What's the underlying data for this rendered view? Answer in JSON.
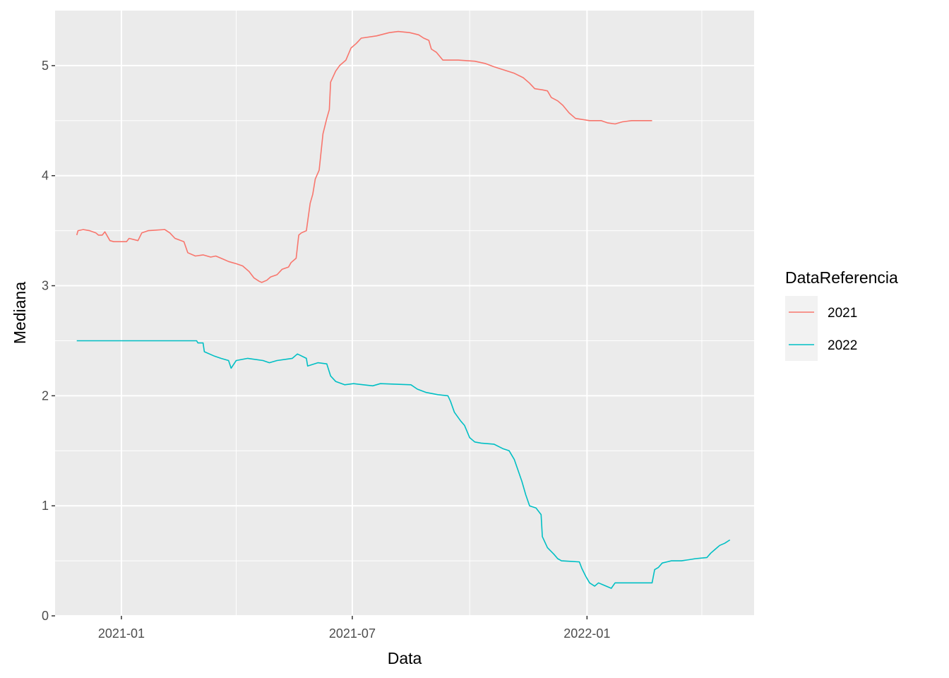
{
  "chart_data": {
    "type": "line",
    "xlabel": "Data",
    "ylabel": "Mediana",
    "x_type": "date",
    "xlim": [
      "2020-11-10",
      "2022-05-12"
    ],
    "ylim": [
      0,
      5.5
    ],
    "x_ticks": [
      {
        "date": "2021-01-01",
        "label": "2021-01"
      },
      {
        "date": "2021-07-01",
        "label": "2021-07"
      },
      {
        "date": "2022-01-01",
        "label": "2022-01"
      }
    ],
    "x_minor_ticks": [
      "2020-10-01",
      "2021-04-01",
      "2021-10-01",
      "2022-04-01"
    ],
    "y_ticks": [
      0,
      1,
      2,
      3,
      4,
      5
    ],
    "y_tick_labels": [
      "0",
      "1",
      "2",
      "3",
      "4",
      "5"
    ],
    "y_minor_ticks": [
      0.5,
      1.5,
      2.5,
      3.5,
      4.5
    ],
    "grid": true,
    "panel_background": "#ebebeb",
    "legend": {
      "title": "DataReferencia",
      "placement": "right"
    },
    "series": [
      {
        "name": "2021",
        "color": "#F8766D",
        "points": [
          [
            "2020-11-27",
            3.46
          ],
          [
            "2020-11-28",
            3.5
          ],
          [
            "2020-12-02",
            3.51
          ],
          [
            "2020-12-07",
            3.5
          ],
          [
            "2020-12-12",
            3.48
          ],
          [
            "2020-12-14",
            3.46
          ],
          [
            "2020-12-17",
            3.46
          ],
          [
            "2020-12-19",
            3.49
          ],
          [
            "2020-12-23",
            3.41
          ],
          [
            "2020-12-26",
            3.4
          ],
          [
            "2021-01-05",
            3.4
          ],
          [
            "2021-01-07",
            3.43
          ],
          [
            "2021-01-14",
            3.41
          ],
          [
            "2021-01-17",
            3.48
          ],
          [
            "2021-01-22",
            3.5
          ],
          [
            "2021-02-04",
            3.51
          ],
          [
            "2021-02-08",
            3.48
          ],
          [
            "2021-02-12",
            3.43
          ],
          [
            "2021-02-19",
            3.4
          ],
          [
            "2021-02-22",
            3.3
          ],
          [
            "2021-02-28",
            3.27
          ],
          [
            "2021-03-06",
            3.28
          ],
          [
            "2021-03-12",
            3.26
          ],
          [
            "2021-03-16",
            3.27
          ],
          [
            "2021-03-22",
            3.24
          ],
          [
            "2021-03-26",
            3.22
          ],
          [
            "2021-04-01",
            3.2
          ],
          [
            "2021-04-06",
            3.18
          ],
          [
            "2021-04-11",
            3.13
          ],
          [
            "2021-04-15",
            3.07
          ],
          [
            "2021-04-19",
            3.04
          ],
          [
            "2021-04-21",
            3.03
          ],
          [
            "2021-04-25",
            3.05
          ],
          [
            "2021-04-28",
            3.08
          ],
          [
            "2021-05-03",
            3.1
          ],
          [
            "2021-05-07",
            3.15
          ],
          [
            "2021-05-12",
            3.17
          ],
          [
            "2021-05-14",
            3.21
          ],
          [
            "2021-05-18",
            3.25
          ],
          [
            "2021-05-20",
            3.46
          ],
          [
            "2021-05-22",
            3.48
          ],
          [
            "2021-05-26",
            3.5
          ],
          [
            "2021-05-29",
            3.75
          ],
          [
            "2021-05-31",
            3.83
          ],
          [
            "2021-06-02",
            3.97
          ],
          [
            "2021-06-05",
            4.05
          ],
          [
            "2021-06-08",
            4.38
          ],
          [
            "2021-06-11",
            4.52
          ],
          [
            "2021-06-13",
            4.6
          ],
          [
            "2021-06-14",
            4.85
          ],
          [
            "2021-06-18",
            4.95
          ],
          [
            "2021-06-21",
            5.0
          ],
          [
            "2021-06-26",
            5.05
          ],
          [
            "2021-06-30",
            5.16
          ],
          [
            "2021-07-04",
            5.2
          ],
          [
            "2021-07-08",
            5.25
          ],
          [
            "2021-07-20",
            5.27
          ],
          [
            "2021-07-30",
            5.3
          ],
          [
            "2021-08-06",
            5.31
          ],
          [
            "2021-08-15",
            5.3
          ],
          [
            "2021-08-22",
            5.28
          ],
          [
            "2021-08-26",
            5.25
          ],
          [
            "2021-08-30",
            5.23
          ],
          [
            "2021-09-01",
            5.15
          ],
          [
            "2021-09-05",
            5.12
          ],
          [
            "2021-09-10",
            5.05
          ],
          [
            "2021-09-22",
            5.05
          ],
          [
            "2021-10-05",
            5.04
          ],
          [
            "2021-10-13",
            5.02
          ],
          [
            "2021-10-20",
            4.99
          ],
          [
            "2021-10-28",
            4.96
          ],
          [
            "2021-11-05",
            4.93
          ],
          [
            "2021-11-12",
            4.89
          ],
          [
            "2021-11-17",
            4.84
          ],
          [
            "2021-11-21",
            4.79
          ],
          [
            "2021-11-27",
            4.78
          ],
          [
            "2021-12-01",
            4.77
          ],
          [
            "2021-12-04",
            4.71
          ],
          [
            "2021-12-09",
            4.68
          ],
          [
            "2021-12-13",
            4.64
          ],
          [
            "2021-12-18",
            4.57
          ],
          [
            "2021-12-23",
            4.52
          ],
          [
            "2022-01-03",
            4.5
          ],
          [
            "2022-01-12",
            4.5
          ],
          [
            "2022-01-17",
            4.48
          ],
          [
            "2022-01-23",
            4.47
          ],
          [
            "2022-01-29",
            4.49
          ],
          [
            "2022-02-05",
            4.5
          ],
          [
            "2022-02-21",
            4.5
          ]
        ]
      },
      {
        "name": "2022",
        "color": "#00BFC4",
        "points": [
          [
            "2020-11-27",
            2.5
          ],
          [
            "2021-03-01",
            2.5
          ],
          [
            "2021-03-02",
            2.48
          ],
          [
            "2021-03-06",
            2.48
          ],
          [
            "2021-03-07",
            2.4
          ],
          [
            "2021-03-15",
            2.36
          ],
          [
            "2021-03-20",
            2.34
          ],
          [
            "2021-03-26",
            2.32
          ],
          [
            "2021-03-28",
            2.25
          ],
          [
            "2021-04-01",
            2.32
          ],
          [
            "2021-04-10",
            2.34
          ],
          [
            "2021-04-22",
            2.32
          ],
          [
            "2021-04-27",
            2.3
          ],
          [
            "2021-05-03",
            2.32
          ],
          [
            "2021-05-15",
            2.34
          ],
          [
            "2021-05-19",
            2.38
          ],
          [
            "2021-05-26",
            2.34
          ],
          [
            "2021-05-27",
            2.27
          ],
          [
            "2021-06-04",
            2.3
          ],
          [
            "2021-06-11",
            2.29
          ],
          [
            "2021-06-14",
            2.18
          ],
          [
            "2021-06-18",
            2.13
          ],
          [
            "2021-06-25",
            2.1
          ],
          [
            "2021-07-02",
            2.11
          ],
          [
            "2021-07-17",
            2.09
          ],
          [
            "2021-07-23",
            2.11
          ],
          [
            "2021-08-16",
            2.1
          ],
          [
            "2021-08-21",
            2.06
          ],
          [
            "2021-08-28",
            2.03
          ],
          [
            "2021-09-06",
            2.01
          ],
          [
            "2021-09-14",
            2.0
          ],
          [
            "2021-09-16",
            1.95
          ],
          [
            "2021-09-19",
            1.85
          ],
          [
            "2021-09-24",
            1.77
          ],
          [
            "2021-09-27",
            1.73
          ],
          [
            "2021-10-01",
            1.62
          ],
          [
            "2021-10-05",
            1.58
          ],
          [
            "2021-10-10",
            1.57
          ],
          [
            "2021-10-20",
            1.56
          ],
          [
            "2021-10-27",
            1.52
          ],
          [
            "2021-11-01",
            1.5
          ],
          [
            "2021-11-05",
            1.42
          ],
          [
            "2021-11-08",
            1.32
          ],
          [
            "2021-11-11",
            1.22
          ],
          [
            "2021-11-14",
            1.1
          ],
          [
            "2021-11-17",
            1.0
          ],
          [
            "2021-11-22",
            0.98
          ],
          [
            "2021-11-26",
            0.92
          ],
          [
            "2021-11-27",
            0.72
          ],
          [
            "2021-12-01",
            0.62
          ],
          [
            "2021-12-06",
            0.56
          ],
          [
            "2021-12-09",
            0.52
          ],
          [
            "2021-12-12",
            0.5
          ],
          [
            "2021-12-26",
            0.49
          ],
          [
            "2021-12-28",
            0.43
          ],
          [
            "2021-12-31",
            0.36
          ],
          [
            "2022-01-03",
            0.3
          ],
          [
            "2022-01-07",
            0.27
          ],
          [
            "2022-01-10",
            0.3
          ],
          [
            "2022-01-14",
            0.28
          ],
          [
            "2022-01-20",
            0.25
          ],
          [
            "2022-01-23",
            0.3
          ],
          [
            "2022-02-08",
            0.3
          ],
          [
            "2022-02-21",
            0.3
          ],
          [
            "2022-02-23",
            0.42
          ],
          [
            "2022-02-26",
            0.44
          ],
          [
            "2022-03-01",
            0.48
          ],
          [
            "2022-03-08",
            0.5
          ],
          [
            "2022-03-16",
            0.5
          ],
          [
            "2022-03-22",
            0.51
          ],
          [
            "2022-03-27",
            0.52
          ],
          [
            "2022-04-05",
            0.53
          ],
          [
            "2022-04-08",
            0.57
          ],
          [
            "2022-04-11",
            0.6
          ],
          [
            "2022-04-15",
            0.64
          ],
          [
            "2022-04-19",
            0.66
          ],
          [
            "2022-04-23",
            0.69
          ]
        ]
      }
    ]
  }
}
